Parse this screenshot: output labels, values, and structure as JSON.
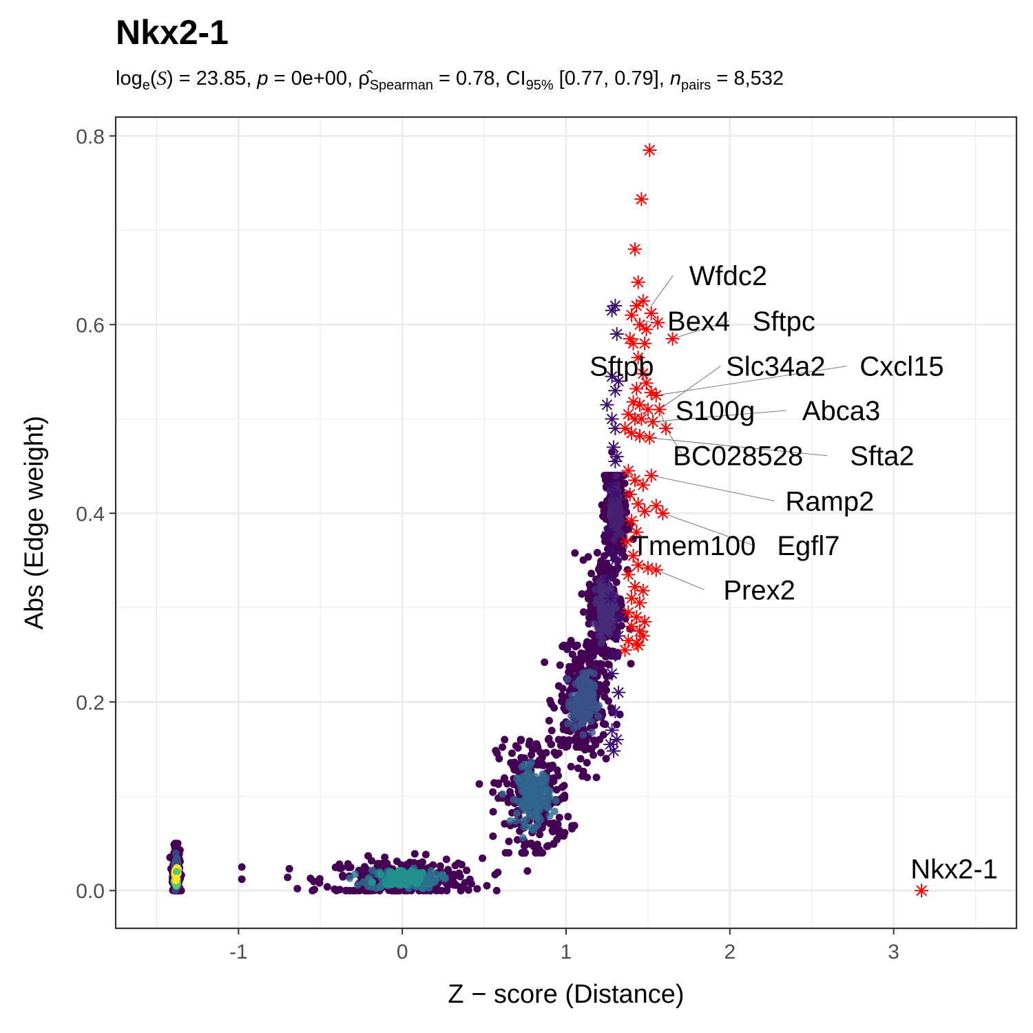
{
  "chart_data": {
    "type": "scatter",
    "title": "Nkx2-1",
    "subtitle": {
      "log_prefix": "log",
      "log_sub": "e",
      "log_var": "S",
      "stat_value": " = 23.85, ",
      "p_label": "p",
      "p_value": " = 0e+00, ",
      "rho": "ρ̂",
      "rho_sub": "Spearman",
      "rho_value": " = 0.78, CI",
      "ci_sub": "95%",
      "ci_value": " [0.77, 0.79], ",
      "n_label": "n",
      "n_sub": "pairs",
      "n_value": " = 8,532"
    },
    "xlabel": "Z − score (Distance)",
    "ylabel": "Abs (Edge weight)",
    "xlim": [
      -1.75,
      3.75
    ],
    "ylim": [
      -0.04,
      0.82
    ],
    "x_ticks": [
      -1,
      0,
      1,
      2,
      3
    ],
    "y_ticks": [
      0.0,
      0.2,
      0.4,
      0.6,
      0.8
    ],
    "x_tick_labels": [
      "-1",
      "0",
      "1",
      "2",
      "3"
    ],
    "y_tick_labels": [
      "0.0",
      "0.2",
      "0.4",
      "0.6",
      "0.8"
    ],
    "grid": true,
    "legend": "none",
    "colors": {
      "highlight": "#FF0000",
      "dark": "#440154",
      "low_density": "#3B0F70",
      "mid_density": "#2C728E",
      "high_density": "#21918C",
      "very_high_density": "#5DC863",
      "peak_density": "#FDE725"
    },
    "clusters": [
      {
        "name": "baseline-column",
        "center": [
          -1.38,
          0.02
        ],
        "spread": [
          0.01,
          0.012
        ],
        "ymin": 0.0,
        "ymax": 0.05,
        "color": "#3B528B"
      },
      {
        "name": "cluster-0",
        "center": [
          0.0,
          0.012
        ],
        "spread": [
          0.22,
          0.01
        ],
        "ymin": 0.0,
        "ymax": 0.045,
        "color": "#2C728E"
      },
      {
        "name": "cluster-0.8",
        "center": [
          0.8,
          0.1
        ],
        "spread": [
          0.1,
          0.03
        ],
        "ymin": 0.04,
        "ymax": 0.16,
        "color": "#31688E"
      },
      {
        "name": "cluster-1.1",
        "center": [
          1.1,
          0.2
        ],
        "spread": [
          0.07,
          0.03
        ],
        "ymin": 0.12,
        "ymax": 0.26,
        "color": "#3B528B"
      },
      {
        "name": "cluster-1.25",
        "center": [
          1.24,
          0.3
        ],
        "spread": [
          0.05,
          0.025
        ],
        "ymin": 0.24,
        "ymax": 0.36,
        "color": "#472D7B"
      },
      {
        "name": "cluster-1.3",
        "center": [
          1.3,
          0.4
        ],
        "spread": [
          0.03,
          0.025
        ],
        "ymin": 0.34,
        "ymax": 0.44,
        "color": "#482173"
      }
    ],
    "purple_stars": [
      [
        1.28,
        0.615
      ],
      [
        1.31,
        0.59
      ],
      [
        1.3,
        0.62
      ],
      [
        1.28,
        0.545
      ],
      [
        1.3,
        0.53
      ],
      [
        1.32,
        0.54
      ],
      [
        1.25,
        0.515
      ],
      [
        1.28,
        0.5
      ],
      [
        1.3,
        0.49
      ],
      [
        1.29,
        0.47
      ],
      [
        1.31,
        0.46
      ],
      [
        1.3,
        0.455
      ],
      [
        1.27,
        0.43
      ],
      [
        1.3,
        0.42
      ],
      [
        1.26,
        0.38
      ],
      [
        1.28,
        0.36
      ],
      [
        1.3,
        0.35
      ],
      [
        1.25,
        0.33
      ],
      [
        1.27,
        0.31
      ],
      [
        1.33,
        0.29
      ],
      [
        1.32,
        0.27
      ],
      [
        1.3,
        0.25
      ],
      [
        1.28,
        0.23
      ],
      [
        1.32,
        0.21
      ],
      [
        1.3,
        0.19
      ],
      [
        1.28,
        0.17
      ],
      [
        1.31,
        0.16
      ],
      [
        1.29,
        0.148
      ],
      [
        1.27,
        0.155
      ]
    ],
    "red_stars": [
      [
        1.51,
        0.785
      ],
      [
        1.46,
        0.733
      ],
      [
        1.42,
        0.68
      ],
      [
        1.44,
        0.645
      ],
      [
        1.43,
        0.62
      ],
      [
        1.47,
        0.625
      ],
      [
        1.4,
        0.61
      ],
      [
        1.45,
        0.6
      ],
      [
        1.49,
        0.595
      ],
      [
        1.52,
        0.612
      ],
      [
        1.56,
        0.602
      ],
      [
        1.65,
        0.585
      ],
      [
        1.39,
        0.585
      ],
      [
        1.41,
        0.58
      ],
      [
        1.48,
        0.58
      ],
      [
        1.44,
        0.565
      ],
      [
        1.47,
        0.548
      ],
      [
        1.43,
        0.532
      ],
      [
        1.49,
        0.538
      ],
      [
        1.52,
        0.528
      ],
      [
        1.55,
        0.525
      ],
      [
        1.41,
        0.518
      ],
      [
        1.45,
        0.515
      ],
      [
        1.5,
        0.51
      ],
      [
        1.57,
        0.51
      ],
      [
        1.38,
        0.505
      ],
      [
        1.42,
        0.5
      ],
      [
        1.46,
        0.5
      ],
      [
        1.53,
        0.497
      ],
      [
        1.61,
        0.49
      ],
      [
        1.36,
        0.49
      ],
      [
        1.4,
        0.485
      ],
      [
        1.45,
        0.482
      ],
      [
        1.51,
        0.48
      ],
      [
        1.38,
        0.445
      ],
      [
        1.42,
        0.435
      ],
      [
        1.47,
        0.43
      ],
      [
        1.52,
        0.44
      ],
      [
        1.39,
        0.42
      ],
      [
        1.44,
        0.41
      ],
      [
        1.48,
        0.402
      ],
      [
        1.55,
        0.408
      ],
      [
        1.59,
        0.4
      ],
      [
        1.4,
        0.392
      ],
      [
        1.43,
        0.38
      ],
      [
        1.37,
        0.37
      ],
      [
        1.41,
        0.355
      ],
      [
        1.44,
        0.345
      ],
      [
        1.5,
        0.342
      ],
      [
        1.55,
        0.34
      ],
      [
        1.38,
        0.335
      ],
      [
        1.42,
        0.322
      ],
      [
        1.47,
        0.318
      ],
      [
        1.4,
        0.31
      ],
      [
        1.45,
        0.305
      ],
      [
        1.38,
        0.295
      ],
      [
        1.43,
        0.29
      ],
      [
        1.48,
        0.285
      ],
      [
        1.4,
        0.28
      ],
      [
        1.45,
        0.275
      ],
      [
        1.38,
        0.265
      ],
      [
        1.43,
        0.262
      ],
      [
        1.36,
        0.255
      ],
      [
        1.47,
        0.27
      ],
      [
        1.44,
        0.26
      ],
      [
        3.17,
        0.0
      ]
    ],
    "labels": [
      {
        "text": "Wfdc2",
        "point": [
          1.52,
          0.62
        ],
        "at": [
          1.99,
          0.652
        ],
        "line": true
      },
      {
        "text": "Bex4",
        "point": [
          1.56,
          0.602
        ],
        "at": [
          1.81,
          0.604
        ],
        "line": true
      },
      {
        "text": "Sftpc",
        "point": [
          1.65,
          0.585
        ],
        "at": [
          2.33,
          0.604
        ],
        "line": true
      },
      {
        "text": "Sftpb",
        "point": [
          1.3,
          0.55
        ],
        "at": [
          1.34,
          0.556
        ],
        "line": false
      },
      {
        "text": "Slc34a2",
        "point": [
          1.57,
          0.51
        ],
        "at": [
          2.28,
          0.556
        ],
        "line": true
      },
      {
        "text": "Cxcl15",
        "point": [
          1.55,
          0.525
        ],
        "at": [
          3.05,
          0.556
        ],
        "line": true
      },
      {
        "text": "S100g",
        "point": [
          1.61,
          0.49
        ],
        "at": [
          1.91,
          0.509
        ],
        "line": true
      },
      {
        "text": "Abca3",
        "point": [
          1.53,
          0.497
        ],
        "at": [
          2.68,
          0.509
        ],
        "line": true
      },
      {
        "text": "BC028528",
        "point": [
          1.61,
          0.49
        ],
        "at": [
          2.05,
          0.461
        ],
        "line": true
      },
      {
        "text": "Sfta2",
        "point": [
          1.51,
          0.48
        ],
        "at": [
          2.93,
          0.461
        ],
        "line": true
      },
      {
        "text": "Ramp2",
        "point": [
          1.52,
          0.44
        ],
        "at": [
          2.61,
          0.413
        ],
        "line": true
      },
      {
        "text": "Egfl7",
        "point": [
          1.59,
          0.4
        ],
        "at": [
          2.48,
          0.366
        ],
        "line": true
      },
      {
        "text": "Tmem100",
        "point": [
          1.4,
          0.392
        ],
        "at": [
          1.78,
          0.366
        ],
        "line": false
      },
      {
        "text": "Prex2",
        "point": [
          1.55,
          0.34
        ],
        "at": [
          2.18,
          0.319
        ],
        "line": true
      },
      {
        "text": "Nkx2-1",
        "point": [
          3.17,
          0.0
        ],
        "at": [
          3.37,
          0.023
        ],
        "line": false
      }
    ]
  }
}
